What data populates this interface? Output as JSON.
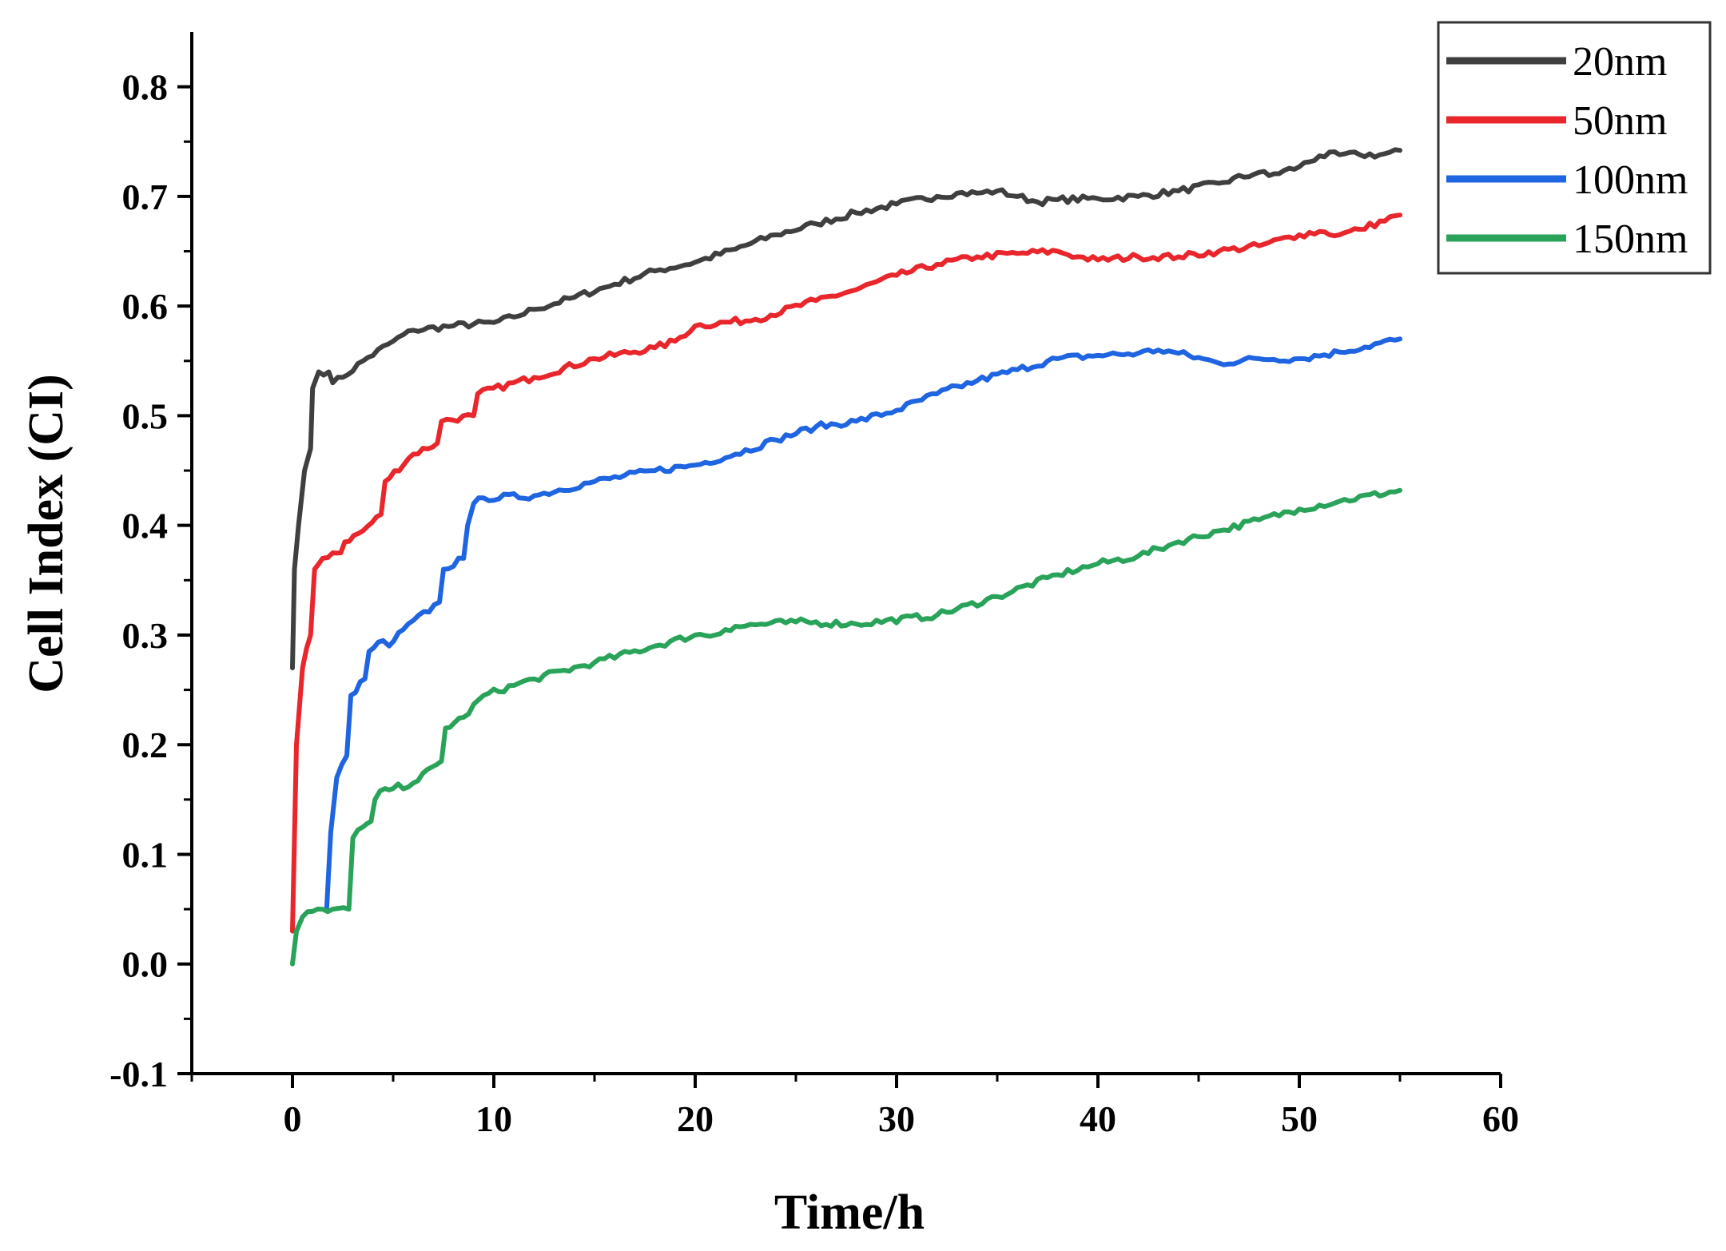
{
  "chart_data": {
    "type": "line",
    "title": "",
    "xlabel": "Time/h",
    "ylabel": "Cell Index (CI)",
    "xlim": [
      -5,
      60
    ],
    "ylim": [
      -0.1,
      0.85
    ],
    "xticks": [
      0,
      10,
      20,
      30,
      40,
      50,
      60
    ],
    "xtick_labels": [
      "0",
      "10",
      "20",
      "30",
      "40",
      "50",
      "60"
    ],
    "yticks": [
      -0.1,
      0.0,
      0.1,
      0.2,
      0.3,
      0.4,
      0.5,
      0.6,
      0.7,
      0.8
    ],
    "ytick_labels": [
      "-0.1",
      "0.0",
      "0.1",
      "0.2",
      "0.3",
      "0.4",
      "0.5",
      "0.6",
      "0.7",
      "0.8"
    ],
    "legend_position": "top-right",
    "grid": false,
    "series": [
      {
        "name": "20nm",
        "color": "#3f3f3f",
        "x": [
          0,
          0.1,
          0.3,
          0.6,
          0.9,
          1.0,
          1.3,
          1.8,
          2.0,
          2.5,
          3.5,
          5,
          6,
          8,
          10,
          11,
          12,
          14,
          16,
          18,
          20,
          22,
          24,
          26,
          28,
          30,
          32,
          33,
          34,
          35,
          36,
          37,
          38,
          40,
          42,
          44,
          46,
          48,
          48.5,
          50,
          51,
          52,
          53,
          54,
          55
        ],
        "values": [
          0.27,
          0.36,
          0.4,
          0.45,
          0.47,
          0.525,
          0.54,
          0.54,
          0.53,
          0.535,
          0.55,
          0.568,
          0.578,
          0.582,
          0.585,
          0.59,
          0.597,
          0.608,
          0.62,
          0.632,
          0.64,
          0.652,
          0.665,
          0.675,
          0.685,
          0.693,
          0.7,
          0.703,
          0.703,
          0.705,
          0.7,
          0.695,
          0.697,
          0.698,
          0.7,
          0.705,
          0.712,
          0.722,
          0.719,
          0.727,
          0.737,
          0.738,
          0.738,
          0.738,
          0.742
        ]
      },
      {
        "name": "50nm",
        "color": "#e8262b",
        "x": [
          0,
          0.2,
          0.5,
          0.9,
          1.1,
          1.5,
          2.0,
          2.4,
          2.6,
          3.5,
          4.4,
          4.6,
          6,
          7.2,
          7.4,
          9,
          9.2,
          12,
          15,
          18,
          19,
          20,
          23,
          26,
          28,
          30,
          32,
          34,
          36,
          38,
          39,
          40,
          42,
          44,
          46,
          48,
          50,
          51,
          52,
          53,
          55
        ],
        "values": [
          0.03,
          0.2,
          0.27,
          0.3,
          0.36,
          0.37,
          0.375,
          0.375,
          0.385,
          0.395,
          0.41,
          0.44,
          0.465,
          0.475,
          0.495,
          0.5,
          0.52,
          0.535,
          0.552,
          0.562,
          0.568,
          0.582,
          0.588,
          0.605,
          0.615,
          0.628,
          0.638,
          0.645,
          0.648,
          0.65,
          0.645,
          0.642,
          0.645,
          0.645,
          0.65,
          0.655,
          0.665,
          0.668,
          0.665,
          0.67,
          0.683
        ]
      },
      {
        "name": "100nm",
        "color": "#1f64e0",
        "x": [
          1.7,
          1.9,
          2.2,
          2.7,
          2.9,
          3.6,
          3.8,
          4.5,
          4.8,
          5.5,
          7.3,
          7.5,
          8.5,
          8.7,
          9.0,
          9.5,
          12,
          15,
          18,
          20,
          22,
          24,
          26,
          28,
          30,
          32,
          34,
          36,
          38,
          40,
          42,
          43,
          44,
          46,
          48,
          50,
          52,
          55
        ],
        "values": [
          0.05,
          0.12,
          0.17,
          0.19,
          0.245,
          0.26,
          0.285,
          0.295,
          0.29,
          0.305,
          0.33,
          0.36,
          0.37,
          0.4,
          0.42,
          0.425,
          0.427,
          0.44,
          0.45,
          0.455,
          0.465,
          0.478,
          0.49,
          0.495,
          0.505,
          0.52,
          0.532,
          0.542,
          0.552,
          0.555,
          0.557,
          0.56,
          0.557,
          0.548,
          0.552,
          0.552,
          0.558,
          0.57
        ]
      },
      {
        "name": "150nm",
        "color": "#2aa35a",
        "x": [
          0,
          0.2,
          0.5,
          1.0,
          1.5,
          2.0,
          2.8,
          3.0,
          3.5,
          3.9,
          4.1,
          4.6,
          5.0,
          6,
          7.4,
          7.6,
          8.5,
          9.5,
          12,
          15,
          18,
          20,
          21,
          21.5,
          22,
          25,
          28,
          32,
          35,
          38,
          40,
          42,
          44,
          46,
          48,
          50,
          52,
          55
        ],
        "values": [
          0.0,
          0.03,
          0.043,
          0.048,
          0.05,
          0.05,
          0.05,
          0.115,
          0.125,
          0.13,
          0.15,
          0.16,
          0.16,
          0.165,
          0.185,
          0.215,
          0.225,
          0.245,
          0.26,
          0.275,
          0.29,
          0.3,
          0.3,
          0.305,
          0.308,
          0.312,
          0.31,
          0.318,
          0.335,
          0.355,
          0.365,
          0.372,
          0.385,
          0.395,
          0.405,
          0.415,
          0.422,
          0.432
        ]
      }
    ]
  }
}
